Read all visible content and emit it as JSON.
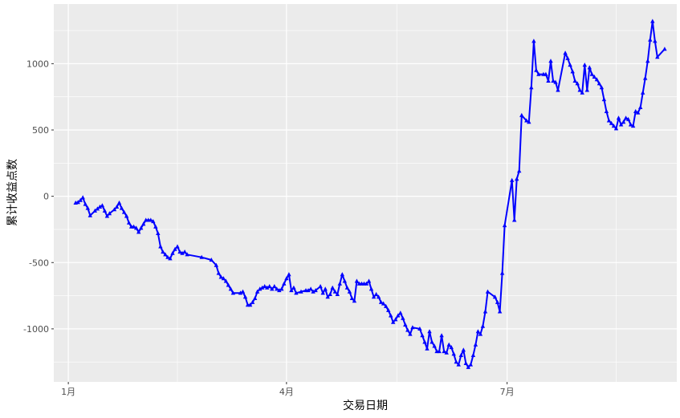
{
  "chart_data": {
    "type": "line",
    "title": "",
    "xlabel": "交易日期",
    "ylabel": "累计收益点数",
    "x_ticks": [
      {
        "label": "1月",
        "day": 0
      },
      {
        "label": "4月",
        "day": 90
      },
      {
        "label": "7月",
        "day": 181
      }
    ],
    "y_ticks": [
      -1000,
      -500,
      0,
      500,
      1000
    ],
    "xlim": [
      -6,
      251
    ],
    "ylim": [
      -1400,
      1450
    ],
    "grid": true,
    "marker": "triangle",
    "colors": {
      "line": "#0000ff",
      "panel": "#ebebeb",
      "grid": "#ffffff"
    },
    "series": [
      {
        "name": "",
        "points": [
          [
            3,
            -50
          ],
          [
            4,
            -45
          ],
          [
            5,
            -30
          ],
          [
            6,
            -10
          ],
          [
            7,
            -60
          ],
          [
            8,
            -90
          ],
          [
            9,
            -145
          ],
          [
            11,
            -110
          ],
          [
            12,
            -95
          ],
          [
            13,
            -80
          ],
          [
            14,
            -70
          ],
          [
            15,
            -110
          ],
          [
            16,
            -150
          ],
          [
            17,
            -130
          ],
          [
            19,
            -100
          ],
          [
            20,
            -80
          ],
          [
            21,
            -50
          ],
          [
            22,
            -90
          ],
          [
            23,
            -120
          ],
          [
            24,
            -150
          ],
          [
            25,
            -200
          ],
          [
            26,
            -230
          ],
          [
            27,
            -230
          ],
          [
            28,
            -240
          ],
          [
            29,
            -270
          ],
          [
            30,
            -240
          ],
          [
            31,
            -210
          ],
          [
            32,
            -180
          ],
          [
            33,
            -180
          ],
          [
            34,
            -180
          ],
          [
            35,
            -190
          ],
          [
            36,
            -230
          ],
          [
            37,
            -280
          ],
          [
            38,
            -380
          ],
          [
            39,
            -420
          ],
          [
            40,
            -440
          ],
          [
            41,
            -460
          ],
          [
            42,
            -470
          ],
          [
            43,
            -430
          ],
          [
            44,
            -400
          ],
          [
            45,
            -380
          ],
          [
            46,
            -420
          ],
          [
            47,
            -430
          ],
          [
            48,
            -420
          ],
          [
            49,
            -440
          ],
          [
            55,
            -460
          ],
          [
            59,
            -480
          ],
          [
            61,
            -520
          ],
          [
            62,
            -580
          ],
          [
            63,
            -610
          ],
          [
            64,
            -620
          ],
          [
            65,
            -640
          ],
          [
            66,
            -670
          ],
          [
            67,
            -700
          ],
          [
            68,
            -730
          ],
          [
            71,
            -730
          ],
          [
            72,
            -720
          ],
          [
            73,
            -760
          ],
          [
            74,
            -820
          ],
          [
            75,
            -820
          ],
          [
            76,
            -800
          ],
          [
            77,
            -770
          ],
          [
            78,
            -720
          ],
          [
            79,
            -700
          ],
          [
            80,
            -690
          ],
          [
            81,
            -680
          ],
          [
            82,
            -690
          ],
          [
            83,
            -680
          ],
          [
            84,
            -700
          ],
          [
            85,
            -680
          ],
          [
            86,
            -700
          ],
          [
            87,
            -710
          ],
          [
            88,
            -700
          ],
          [
            89,
            -660
          ],
          [
            90,
            -620
          ],
          [
            91,
            -590
          ],
          [
            92,
            -710
          ],
          [
            93,
            -690
          ],
          [
            94,
            -730
          ],
          [
            96,
            -720
          ],
          [
            98,
            -710
          ],
          [
            99,
            -710
          ],
          [
            100,
            -700
          ],
          [
            101,
            -720
          ],
          [
            102,
            -710
          ],
          [
            104,
            -680
          ],
          [
            105,
            -730
          ],
          [
            106,
            -700
          ],
          [
            107,
            -760
          ],
          [
            108,
            -740
          ],
          [
            109,
            -690
          ],
          [
            110,
            -720
          ],
          [
            111,
            -740
          ],
          [
            112,
            -660
          ],
          [
            113,
            -590
          ],
          [
            114,
            -640
          ],
          [
            115,
            -690
          ],
          [
            116,
            -720
          ],
          [
            117,
            -770
          ],
          [
            118,
            -790
          ],
          [
            119,
            -640
          ],
          [
            120,
            -660
          ],
          [
            121,
            -660
          ],
          [
            122,
            -660
          ],
          [
            123,
            -660
          ],
          [
            124,
            -640
          ],
          [
            125,
            -700
          ],
          [
            126,
            -760
          ],
          [
            127,
            -740
          ],
          [
            128,
            -760
          ],
          [
            129,
            -800
          ],
          [
            130,
            -810
          ],
          [
            131,
            -830
          ],
          [
            132,
            -860
          ],
          [
            133,
            -900
          ],
          [
            134,
            -950
          ],
          [
            135,
            -930
          ],
          [
            136,
            -900
          ],
          [
            137,
            -880
          ],
          [
            138,
            -920
          ],
          [
            139,
            -970
          ],
          [
            140,
            -1010
          ],
          [
            141,
            -1040
          ],
          [
            142,
            -990
          ],
          [
            145,
            -1000
          ],
          [
            146,
            -1050
          ],
          [
            147,
            -1100
          ],
          [
            148,
            -1150
          ],
          [
            149,
            -1020
          ],
          [
            150,
            -1100
          ],
          [
            151,
            -1130
          ],
          [
            152,
            -1170
          ],
          [
            153,
            -1170
          ],
          [
            154,
            -1050
          ],
          [
            155,
            -1170
          ],
          [
            156,
            -1180
          ],
          [
            157,
            -1120
          ],
          [
            158,
            -1140
          ],
          [
            159,
            -1190
          ],
          [
            160,
            -1250
          ],
          [
            161,
            -1270
          ],
          [
            162,
            -1200
          ],
          [
            163,
            -1160
          ],
          [
            164,
            -1260
          ],
          [
            165,
            -1290
          ],
          [
            166,
            -1270
          ],
          [
            167,
            -1200
          ],
          [
            168,
            -1120
          ],
          [
            169,
            -1020
          ],
          [
            170,
            -1040
          ],
          [
            171,
            -980
          ],
          [
            172,
            -870
          ],
          [
            173,
            -720
          ],
          [
            176,
            -760
          ],
          [
            177,
            -800
          ],
          [
            178,
            -870
          ],
          [
            179,
            -580
          ],
          [
            180,
            -220
          ],
          [
            183,
            120
          ],
          [
            184,
            -180
          ],
          [
            185,
            130
          ],
          [
            186,
            190
          ],
          [
            187,
            610
          ],
          [
            189,
            570
          ],
          [
            190,
            560
          ],
          [
            191,
            820
          ],
          [
            192,
            1170
          ],
          [
            193,
            950
          ],
          [
            194,
            920
          ],
          [
            196,
            920
          ],
          [
            197,
            920
          ],
          [
            198,
            870
          ],
          [
            199,
            1020
          ],
          [
            200,
            870
          ],
          [
            201,
            860
          ],
          [
            202,
            800
          ],
          [
            205,
            1080
          ],
          [
            206,
            1040
          ],
          [
            207,
            990
          ],
          [
            208,
            940
          ],
          [
            209,
            870
          ],
          [
            210,
            850
          ],
          [
            211,
            800
          ],
          [
            212,
            780
          ],
          [
            213,
            990
          ],
          [
            214,
            800
          ],
          [
            215,
            970
          ],
          [
            216,
            920
          ],
          [
            217,
            900
          ],
          [
            218,
            880
          ],
          [
            219,
            850
          ],
          [
            220,
            820
          ],
          [
            221,
            730
          ],
          [
            222,
            640
          ],
          [
            223,
            570
          ],
          [
            224,
            550
          ],
          [
            225,
            530
          ],
          [
            226,
            510
          ],
          [
            227,
            590
          ],
          [
            228,
            540
          ],
          [
            229,
            560
          ],
          [
            230,
            590
          ],
          [
            231,
            580
          ],
          [
            232,
            540
          ],
          [
            233,
            530
          ],
          [
            234,
            640
          ],
          [
            235,
            630
          ],
          [
            236,
            670
          ],
          [
            237,
            780
          ],
          [
            238,
            890
          ],
          [
            239,
            1020
          ],
          [
            240,
            1180
          ],
          [
            241,
            1320
          ],
          [
            242,
            1170
          ],
          [
            243,
            1050
          ],
          [
            246,
            1110
          ]
        ]
      }
    ]
  }
}
